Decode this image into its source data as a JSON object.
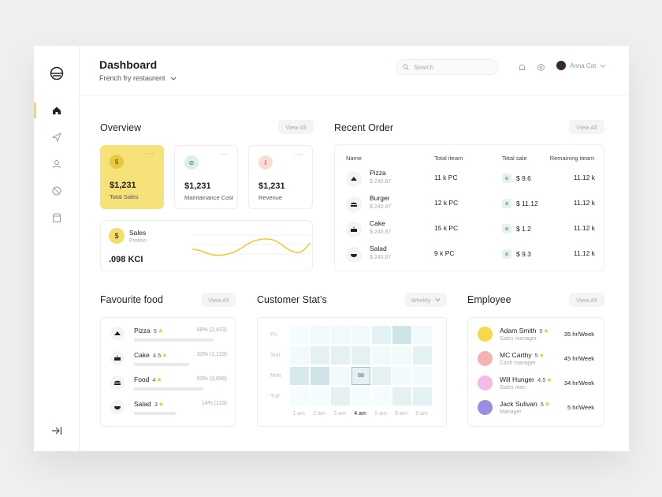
{
  "header": {
    "title": "Dashboard",
    "subtitle": "French fry restaurent",
    "search_placeholder": "Search",
    "user_name": "Anna Cat"
  },
  "overview": {
    "title": "Overview",
    "view_all": "View All",
    "cards": [
      {
        "value": "$1,231",
        "label": "Total Sales",
        "icon": "money-bag-icon"
      },
      {
        "value": "$1,231",
        "label": "Maintainance Cost",
        "icon": "no-cost-icon"
      },
      {
        "value": "$1,231",
        "label": "Revenue",
        "icon": "revenue-icon"
      }
    ],
    "sales": {
      "title": "Sales",
      "subtitle": "Protein",
      "value": ".098 KCI"
    }
  },
  "recent_order": {
    "title": "Recent Order",
    "view_all": "View All",
    "columns": [
      "Name",
      "Total iteam",
      "Total sale",
      "Remaining iteam"
    ],
    "rows": [
      {
        "name": "Pizza",
        "price": "$  240.87",
        "total": "11 k PC",
        "sale": "$ 9.6",
        "remaining": "11.12 k"
      },
      {
        "name": "Burger",
        "price": "$  240.87",
        "total": "12 k PC",
        "sale": "$ 11.12",
        "remaining": "11.12 k"
      },
      {
        "name": "Cake",
        "price": "$  240.87",
        "total": "15 k PC",
        "sale": "$ 1.2",
        "remaining": "11.12 k"
      },
      {
        "name": "Salad",
        "price": "$  240.87",
        "total": "9 k PC",
        "sale": "$ 9.3",
        "remaining": "11.12 k"
      }
    ]
  },
  "favourite_food": {
    "title": "Favourite food",
    "view_all": "View All",
    "items": [
      {
        "name": "Pizza",
        "rating": "5",
        "percent": "68% (2,433)",
        "share": 0.68
      },
      {
        "name": "Cake",
        "rating": "4.5",
        "percent": "33% (1,123)",
        "share": 0.33
      },
      {
        "name": "Food",
        "rating": "4",
        "percent": "53% (3,656)",
        "share": 0.53
      },
      {
        "name": "Salad",
        "rating": "3",
        "percent": "14% (123)",
        "share": 0.14
      }
    ]
  },
  "customer_stats": {
    "title": "Customer Stat’s",
    "period": "Weekly",
    "days": [
      "Fri",
      "Sun",
      "Mon",
      "Tue"
    ],
    "times": [
      "1 am",
      "2 am",
      "3 am",
      "4 am",
      "5 am",
      "6 am",
      "6 am"
    ],
    "active_time_index": 3,
    "highlight_value": "88",
    "cell_colors": [
      [
        "#f5fcfd",
        "#f0fafb",
        "#f0fafb",
        "#f0fafb",
        "#e3f3f5",
        "#cde4e8",
        "#f0fafb"
      ],
      [
        "#f2fbfc",
        "#e3f1f3",
        "#e3f1f3",
        "#e3f1f3",
        "#f2fbfc",
        "#f2fbfc",
        "#e3f1f3"
      ],
      [
        "#d7e9eb",
        "#cfe3e6",
        "#f2fbfc",
        "#e4f0f1",
        "#e3f1f3",
        "#f2fbfc",
        "#f2fbfc"
      ],
      [
        "#f5fcfd",
        "#f5fcfd",
        "#e3f1f3",
        "#f5fcfd",
        "#f5fcfd",
        "#e3f1f3",
        "#e3f1f3"
      ]
    ]
  },
  "employee": {
    "title": "Employee",
    "view_all": "View All",
    "items": [
      {
        "name": "Adam Smith",
        "rating": "5",
        "role": "Sales manager",
        "hours": "35 hr/Week",
        "avatar_color": "#f5d94a"
      },
      {
        "name": "MC Carthy",
        "rating": "5",
        "role": "Cash manager",
        "hours": "45 hr/Week",
        "avatar_color": "#f4b3b3"
      },
      {
        "name": "Will Hunger",
        "rating": "4.5",
        "role": "Sales man",
        "hours": "34 hr/Week",
        "avatar_color": "#f6b8e4"
      },
      {
        "name": "Jack Sulivan",
        "rating": "5",
        "role": "Manager",
        "hours": "5 hr/Week",
        "avatar_color": "#9b8de0"
      }
    ]
  },
  "colors": {
    "accent": "#f5d94a",
    "heat_border": "#9fbfc4"
  }
}
